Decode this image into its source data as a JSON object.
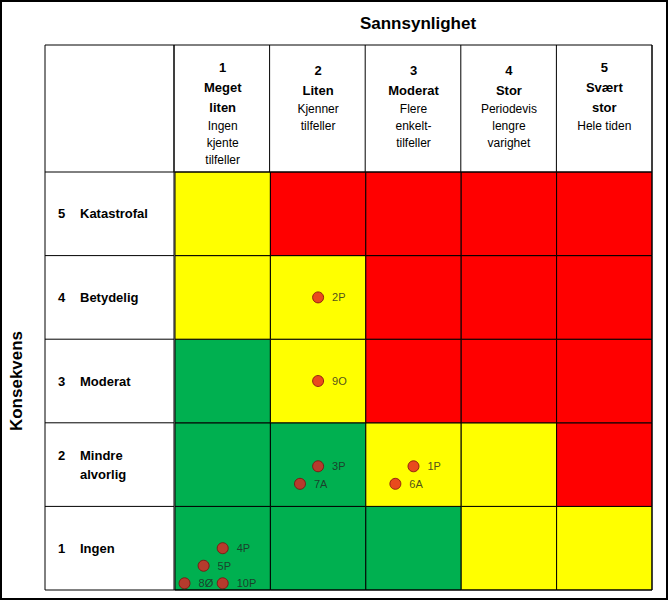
{
  "chart_data": {
    "type": "risk_matrix",
    "title": "Sannsynlighet",
    "y_label": "Konsekvens",
    "x_categories": [
      {
        "value": 1,
        "name": "Meget liten",
        "description": "Ingen kjente tilfeller"
      },
      {
        "value": 2,
        "name": "Liten",
        "description": "Kjenner tilfeller"
      },
      {
        "value": 3,
        "name": "Moderat",
        "description": "Flere enkelt-tilfeller"
      },
      {
        "value": 4,
        "name": "Stor",
        "description": "Periodevis lengre varighet"
      },
      {
        "value": 5,
        "name": "Svært stor",
        "description": "Hele tiden"
      }
    ],
    "y_categories": [
      {
        "value": 1,
        "name": "Ingen"
      },
      {
        "value": 2,
        "name": "Mindre alvorlig"
      },
      {
        "value": 3,
        "name": "Moderat"
      },
      {
        "value": 4,
        "name": "Betydelig"
      },
      {
        "value": 5,
        "name": "Katastrofal"
      }
    ],
    "cell_colors": [
      [
        "#00b050",
        "#00b050",
        "#00b050",
        "#ffff00",
        "#ffff00"
      ],
      [
        "#00b050",
        "#00b050",
        "#ffff00",
        "#ffff00",
        "#ff0000"
      ],
      [
        "#00b050",
        "#ffff00",
        "#ff0000",
        "#ff0000",
        "#ff0000"
      ],
      [
        "#ffff00",
        "#ffff00",
        "#ff0000",
        "#ff0000",
        "#ff0000"
      ],
      [
        "#ffff00",
        "#ff0000",
        "#ff0000",
        "#ff0000",
        "#ff0000"
      ]
    ],
    "xlim": [
      0.5,
      5.5
    ],
    "ylim": [
      0.5,
      5.5
    ],
    "color": "#e31e24",
    "marker": "circle",
    "points": [
      {
        "label": "2P",
        "x": 2.0,
        "y": 4.0
      },
      {
        "label": "9O",
        "x": 2.0,
        "y": 3.0
      },
      {
        "label": "3P",
        "x": 2.0,
        "y": 1.98
      },
      {
        "label": "7A",
        "x": 1.81,
        "y": 1.77
      },
      {
        "label": "1P",
        "x": 3.0,
        "y": 1.98
      },
      {
        "label": "6A",
        "x": 2.81,
        "y": 1.77
      },
      {
        "label": "4P",
        "x": 1.0,
        "y": 1.0
      },
      {
        "label": "5P",
        "x": 0.8,
        "y": 0.79
      },
      {
        "label": "8Ø",
        "x": 0.6,
        "y": 0.58
      },
      {
        "label": "10P",
        "x": 1.0,
        "y": 0.58
      }
    ]
  }
}
